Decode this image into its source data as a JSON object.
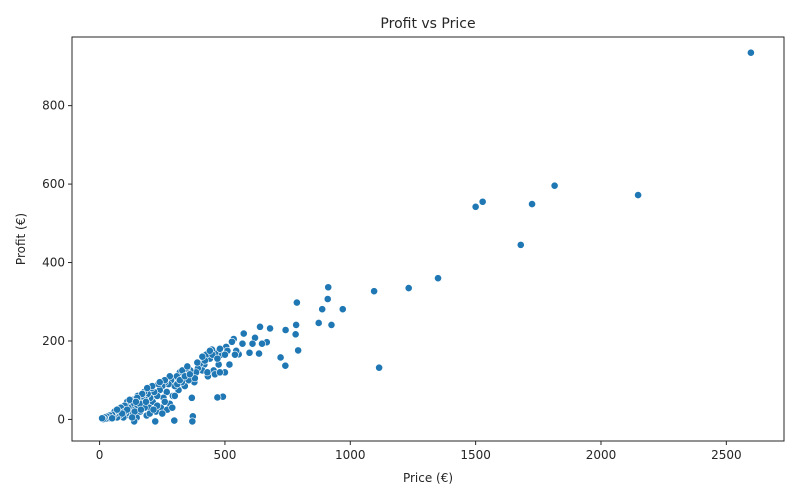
{
  "chart_data": {
    "type": "scatter",
    "title": "Profit vs Price",
    "xlabel": "Price (€)",
    "ylabel": "Profit (€)",
    "xlim": [
      -110,
      2730
    ],
    "ylim": [
      -55,
      975
    ],
    "x_ticks": [
      0,
      500,
      1000,
      1500,
      2000,
      2500
    ],
    "y_ticks": [
      0,
      200,
      400,
      600,
      800
    ],
    "x_tick_labels": [
      "0",
      "500",
      "1000",
      "1500",
      "2000",
      "2500"
    ],
    "y_tick_labels": [
      "0",
      "200",
      "400",
      "600",
      "800"
    ],
    "grid": false,
    "legend": "none",
    "marker_color": "#1f77b4",
    "marker_edge_color": "#ffffff",
    "points": [
      {
        "x": 2598,
        "y": 935
      },
      {
        "x": 2148,
        "y": 572
      },
      {
        "x": 1815,
        "y": 596
      },
      {
        "x": 1725,
        "y": 549
      },
      {
        "x": 1680,
        "y": 445
      },
      {
        "x": 1528,
        "y": 555
      },
      {
        "x": 1500,
        "y": 542
      },
      {
        "x": 1350,
        "y": 360
      },
      {
        "x": 1233,
        "y": 335
      },
      {
        "x": 1095,
        "y": 327
      },
      {
        "x": 1115,
        "y": 132
      },
      {
        "x": 970,
        "y": 281
      },
      {
        "x": 925,
        "y": 241
      },
      {
        "x": 912,
        "y": 337
      },
      {
        "x": 910,
        "y": 307
      },
      {
        "x": 888,
        "y": 281
      },
      {
        "x": 874,
        "y": 246
      },
      {
        "x": 787,
        "y": 298
      },
      {
        "x": 784,
        "y": 241
      },
      {
        "x": 782,
        "y": 217
      },
      {
        "x": 792,
        "y": 176
      },
      {
        "x": 742,
        "y": 228
      },
      {
        "x": 741,
        "y": 137
      },
      {
        "x": 722,
        "y": 158
      },
      {
        "x": 680,
        "y": 232
      },
      {
        "x": 667,
        "y": 197
      },
      {
        "x": 648,
        "y": 193
      },
      {
        "x": 640,
        "y": 236
      },
      {
        "x": 636,
        "y": 168
      },
      {
        "x": 620,
        "y": 208
      },
      {
        "x": 610,
        "y": 193
      },
      {
        "x": 598,
        "y": 170
      },
      {
        "x": 575,
        "y": 219
      },
      {
        "x": 570,
        "y": 193
      },
      {
        "x": 555,
        "y": 166
      },
      {
        "x": 545,
        "y": 175
      },
      {
        "x": 535,
        "y": 205
      },
      {
        "x": 528,
        "y": 198
      },
      {
        "x": 518,
        "y": 140
      },
      {
        "x": 505,
        "y": 185
      },
      {
        "x": 500,
        "y": 120
      },
      {
        "x": 492,
        "y": 58
      },
      {
        "x": 488,
        "y": 165
      },
      {
        "x": 475,
        "y": 140
      },
      {
        "x": 470,
        "y": 56
      },
      {
        "x": 462,
        "y": 170
      },
      {
        "x": 455,
        "y": 125
      },
      {
        "x": 448,
        "y": 178
      },
      {
        "x": 440,
        "y": 155
      },
      {
        "x": 432,
        "y": 110
      },
      {
        "x": 425,
        "y": 165
      },
      {
        "x": 418,
        "y": 140
      },
      {
        "x": 410,
        "y": 125
      },
      {
        "x": 400,
        "y": 142
      },
      {
        "x": 392,
        "y": 130
      },
      {
        "x": 385,
        "y": 120
      },
      {
        "x": 378,
        "y": 95
      },
      {
        "x": 372,
        "y": 8
      },
      {
        "x": 370,
        "y": -5
      },
      {
        "x": 368,
        "y": 55
      },
      {
        "x": 362,
        "y": 125
      },
      {
        "x": 355,
        "y": 100
      },
      {
        "x": 348,
        "y": 130
      },
      {
        "x": 340,
        "y": 85
      },
      {
        "x": 335,
        "y": 115
      },
      {
        "x": 328,
        "y": 95
      },
      {
        "x": 320,
        "y": 120
      },
      {
        "x": 315,
        "y": 75
      },
      {
        "x": 308,
        "y": 110
      },
      {
        "x": 300,
        "y": 85
      },
      {
        "x": 298,
        "y": -3
      },
      {
        "x": 292,
        "y": 60
      },
      {
        "x": 285,
        "y": 100
      },
      {
        "x": 280,
        "y": 40
      },
      {
        "x": 275,
        "y": 90
      },
      {
        "x": 268,
        "y": 70
      },
      {
        "x": 262,
        "y": 95
      },
      {
        "x": 255,
        "y": 55
      },
      {
        "x": 250,
        "y": 85
      },
      {
        "x": 245,
        "y": 30
      },
      {
        "x": 240,
        "y": 75
      },
      {
        "x": 235,
        "y": 90
      },
      {
        "x": 230,
        "y": 60
      },
      {
        "x": 225,
        "y": 20
      },
      {
        "x": 222,
        "y": -5
      },
      {
        "x": 218,
        "y": 70
      },
      {
        "x": 212,
        "y": 45
      },
      {
        "x": 208,
        "y": 80
      },
      {
        "x": 202,
        "y": 55
      },
      {
        "x": 198,
        "y": 30
      },
      {
        "x": 192,
        "y": 65
      },
      {
        "x": 188,
        "y": 10
      },
      {
        "x": 182,
        "y": 50
      },
      {
        "x": 178,
        "y": 70
      },
      {
        "x": 172,
        "y": 35
      },
      {
        "x": 168,
        "y": 55
      },
      {
        "x": 162,
        "y": 20
      },
      {
        "x": 158,
        "y": 45
      },
      {
        "x": 152,
        "y": 60
      },
      {
        "x": 148,
        "y": 5
      },
      {
        "x": 142,
        "y": 35
      },
      {
        "x": 138,
        "y": -5
      },
      {
        "x": 135,
        "y": 50
      },
      {
        "x": 130,
        "y": 25
      },
      {
        "x": 125,
        "y": 40
      },
      {
        "x": 120,
        "y": 10
      },
      {
        "x": 115,
        "y": 30
      },
      {
        "x": 110,
        "y": 45
      },
      {
        "x": 105,
        "y": 15
      },
      {
        "x": 100,
        "y": 35
      },
      {
        "x": 95,
        "y": 5
      },
      {
        "x": 90,
        "y": 25
      },
      {
        "x": 85,
        "y": 30
      },
      {
        "x": 80,
        "y": 10
      },
      {
        "x": 75,
        "y": 20
      },
      {
        "x": 70,
        "y": 5
      },
      {
        "x": 65,
        "y": 15
      },
      {
        "x": 60,
        "y": 20
      },
      {
        "x": 55,
        "y": 8
      },
      {
        "x": 50,
        "y": 12
      },
      {
        "x": 45,
        "y": 5
      },
      {
        "x": 40,
        "y": 10
      },
      {
        "x": 35,
        "y": 3
      },
      {
        "x": 30,
        "y": 7
      },
      {
        "x": 25,
        "y": 2
      },
      {
        "x": 20,
        "y": 5
      },
      {
        "x": 15,
        "y": 1
      },
      {
        "x": 10,
        "y": 3
      },
      {
        "x": 280,
        "y": 110
      },
      {
        "x": 310,
        "y": 90
      },
      {
        "x": 260,
        "y": 100
      },
      {
        "x": 240,
        "y": 95
      },
      {
        "x": 210,
        "y": 85
      },
      {
        "x": 190,
        "y": 80
      },
      {
        "x": 170,
        "y": 65
      },
      {
        "x": 150,
        "y": 55
      },
      {
        "x": 330,
        "y": 125
      },
      {
        "x": 350,
        "y": 135
      },
      {
        "x": 390,
        "y": 145
      },
      {
        "x": 420,
        "y": 150
      },
      {
        "x": 450,
        "y": 165
      },
      {
        "x": 480,
        "y": 180
      },
      {
        "x": 510,
        "y": 175
      },
      {
        "x": 430,
        "y": 120
      },
      {
        "x": 460,
        "y": 115
      },
      {
        "x": 380,
        "y": 105
      },
      {
        "x": 300,
        "y": 60
      },
      {
        "x": 270,
        "y": 25
      },
      {
        "x": 250,
        "y": 15
      },
      {
        "x": 230,
        "y": 35
      },
      {
        "x": 200,
        "y": 15
      },
      {
        "x": 180,
        "y": 30
      },
      {
        "x": 160,
        "y": 40
      },
      {
        "x": 140,
        "y": 20
      },
      {
        "x": 120,
        "y": 50
      },
      {
        "x": 100,
        "y": 20
      },
      {
        "x": 290,
        "y": 30
      },
      {
        "x": 320,
        "y": 100
      },
      {
        "x": 340,
        "y": 110
      },
      {
        "x": 360,
        "y": 115
      },
      {
        "x": 480,
        "y": 120
      },
      {
        "x": 500,
        "y": 165
      },
      {
        "x": 540,
        "y": 165
      },
      {
        "x": 470,
        "y": 155
      },
      {
        "x": 440,
        "y": 175
      },
      {
        "x": 410,
        "y": 160
      },
      {
        "x": 260,
        "y": 45
      },
      {
        "x": 215,
        "y": 25
      },
      {
        "x": 185,
        "y": 45
      },
      {
        "x": 165,
        "y": 25
      },
      {
        "x": 145,
        "y": 45
      },
      {
        "x": 130,
        "y": 5
      },
      {
        "x": 110,
        "y": 25
      },
      {
        "x": 90,
        "y": 15
      },
      {
        "x": 70,
        "y": 25
      },
      {
        "x": 50,
        "y": 3
      }
    ]
  }
}
